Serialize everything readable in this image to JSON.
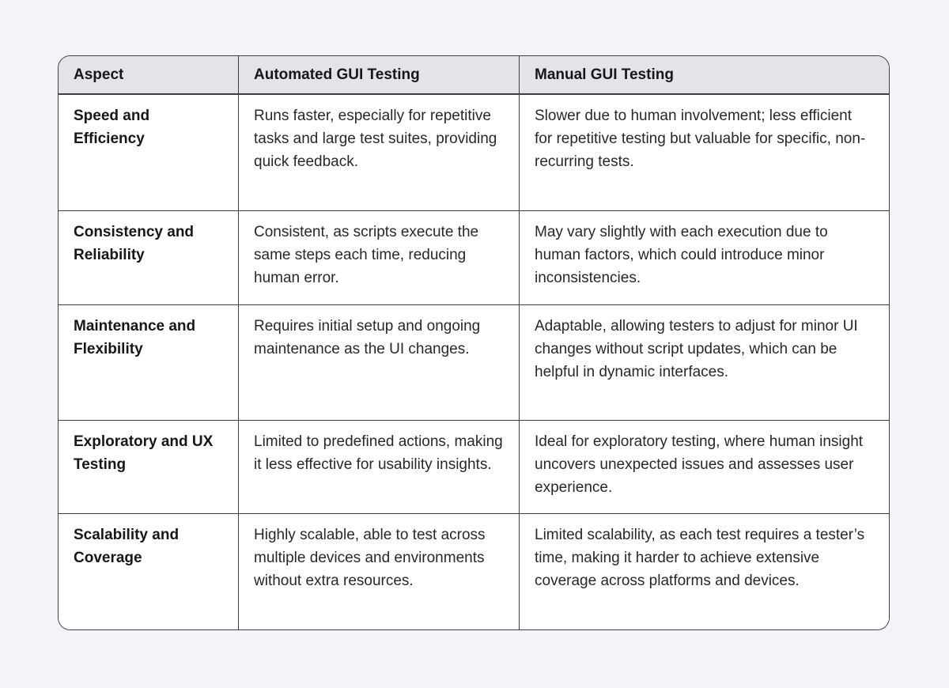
{
  "table": {
    "columns": [
      "Aspect",
      "Automated GUI Testing",
      "Manual GUI Testing"
    ],
    "rows": [
      {
        "aspect": "Speed and Efficiency",
        "automated": "Runs faster, especially for repetitive tasks and large test suites, providing quick feedback.",
        "manual": "Slower due to human involvement; less efficient for repetitive testing but valuable for specific, non-recurring tests."
      },
      {
        "aspect": "Consistency and Reliability",
        "automated": "Consistent, as scripts execute the same steps each time, reducing human error.",
        "manual": "May vary slightly with each execution due to human factors, which could introduce minor inconsistencies."
      },
      {
        "aspect": "Maintenance and Flexibility",
        "automated": "Requires initial setup and ongoing maintenance as the UI changes.",
        "manual": "Adaptable, allowing testers to adjust for minor UI changes without script updates, which can be helpful in dynamic interfaces."
      },
      {
        "aspect": "Exploratory and UX Testing",
        "automated": "Limited to predefined actions, making it less effective for usability insights.",
        "manual": "Ideal for exploratory testing, where human insight uncovers unexpected issues and assesses user experience."
      },
      {
        "aspect": "Scalability and Coverage",
        "automated": "Highly scalable, able to test across multiple devices and environments without extra resources.",
        "manual": "Limited scalability, as each test requires a tester’s time, making it harder to achieve extensive coverage across platforms and devices."
      }
    ]
  }
}
